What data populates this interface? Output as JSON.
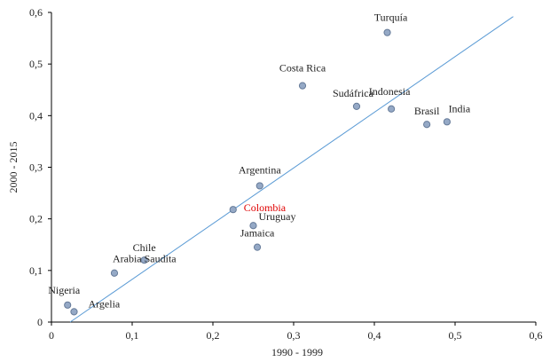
{
  "chart_data": {
    "type": "scatter",
    "xlabel": "1990 - 1999",
    "ylabel": "2000 - 2015",
    "xlim": [
      0,
      0.6
    ],
    "ylim": [
      0,
      0.6
    ],
    "x_ticks": [
      "0",
      "0,1",
      "0,2",
      "0,3",
      "0,4",
      "0,5",
      "0,6"
    ],
    "y_ticks": [
      "0",
      "0,1",
      "0,2",
      "0,3",
      "0,4",
      "0,5",
      "0,6"
    ],
    "grid": false,
    "colors": {
      "point_fill": "#95a9c6",
      "point_stroke": "#667b99",
      "trendline": "#5b9bd5",
      "highlight_label": "#e00000"
    },
    "points": [
      {
        "label": "Turquía",
        "x": 0.416,
        "y": 0.561,
        "highlight": false
      },
      {
        "label": "Costa Rica",
        "x": 0.311,
        "y": 0.458,
        "highlight": false
      },
      {
        "label": "Sudáfrica",
        "x": 0.378,
        "y": 0.418,
        "highlight": false
      },
      {
        "label": "Indonesia",
        "x": 0.421,
        "y": 0.413,
        "highlight": false
      },
      {
        "label": "Brasil",
        "x": 0.465,
        "y": 0.383,
        "highlight": false
      },
      {
        "label": "India",
        "x": 0.49,
        "y": 0.388,
        "highlight": false
      },
      {
        "label": "Argentina",
        "x": 0.258,
        "y": 0.264,
        "highlight": false
      },
      {
        "label": "Colombia",
        "x": 0.225,
        "y": 0.218,
        "highlight": true
      },
      {
        "label": "Uruguay",
        "x": 0.25,
        "y": 0.187,
        "highlight": false
      },
      {
        "label": "Jamaica",
        "x": 0.255,
        "y": 0.145,
        "highlight": false
      },
      {
        "label": "Chile",
        "x": 0.115,
        "y": 0.12,
        "highlight": false
      },
      {
        "label": "Arabia Saudita",
        "x": 0.078,
        "y": 0.095,
        "highlight": false
      },
      {
        "label": "Nigeria",
        "x": 0.02,
        "y": 0.033,
        "highlight": false
      },
      {
        "label": "Argelia",
        "x": 0.028,
        "y": 0.02,
        "highlight": false
      }
    ],
    "trendline": {
      "x": [
        0,
        0.572
      ],
      "y": [
        -0.025,
        0.592
      ]
    }
  }
}
